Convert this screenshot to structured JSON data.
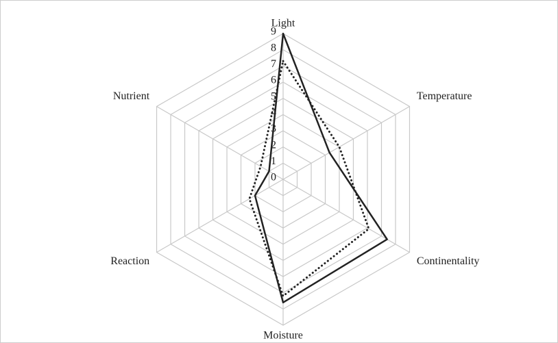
{
  "chart_data": {
    "type": "radar",
    "categories": [
      "Light",
      "Temperature",
      "Continentality",
      "Moisture",
      "Reaction",
      "Nutrient"
    ],
    "series": [
      {
        "color": "#222222",
        "style": "solid",
        "values": [
          9,
          3.3,
          7.4,
          7.6,
          2,
          1
        ]
      },
      {
        "color": "#222222",
        "style": "dotted",
        "values": [
          7.3,
          4,
          6.1,
          7.2,
          2.4,
          1.6
        ]
      }
    ],
    "rlim": [
      0,
      9
    ],
    "rticks": [
      0,
      1,
      2,
      3,
      4,
      5,
      6,
      7,
      8,
      9
    ],
    "grid": true
  }
}
